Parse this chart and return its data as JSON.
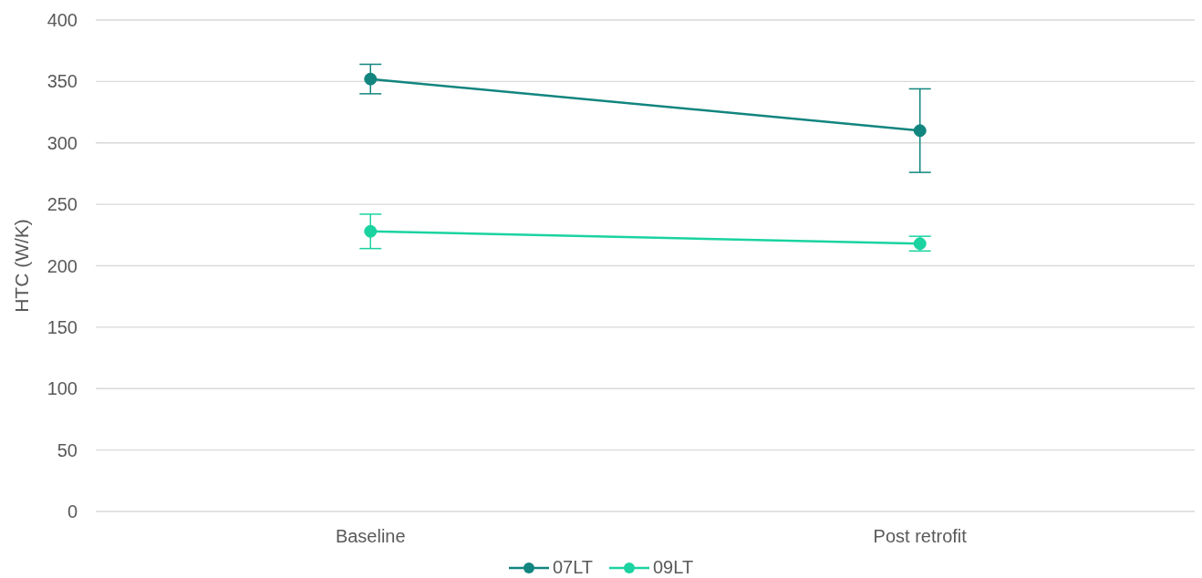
{
  "chart_data": {
    "type": "line",
    "ylabel": "HTC (W/K)",
    "categories": [
      "Baseline",
      "Post retrofit"
    ],
    "series": [
      {
        "name": "07LT",
        "color": "#12857f",
        "values": [
          352,
          310
        ],
        "errors": [
          12,
          34
        ]
      },
      {
        "name": "09LT",
        "color": "#1ad3a0",
        "values": [
          228,
          218
        ],
        "errors": [
          14,
          6
        ]
      }
    ],
    "ylim": [
      0,
      400
    ],
    "yticks": [
      0,
      50,
      100,
      150,
      200,
      250,
      300,
      350,
      400
    ],
    "grid": "y",
    "legend": "bottom",
    "marker": "circle",
    "line_style": "solid"
  }
}
